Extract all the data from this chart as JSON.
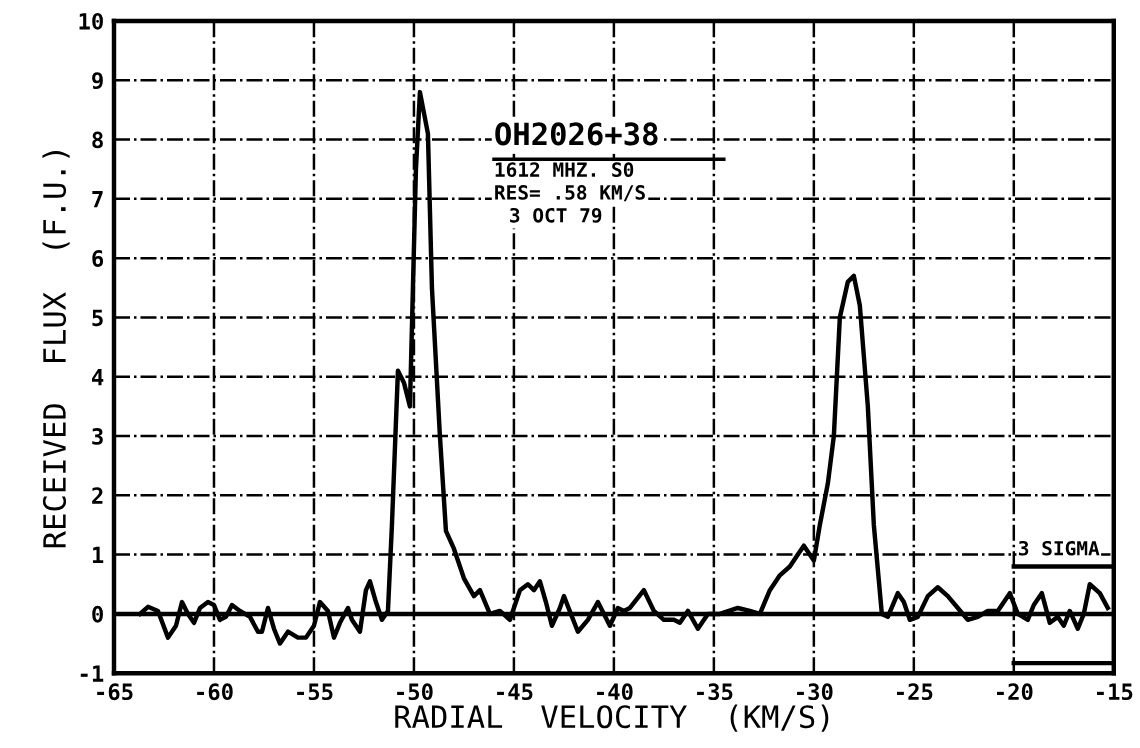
{
  "chart_data": {
    "type": "line",
    "xlabel": "RADIAL  VELOCITY  (KM/S)",
    "ylabel": "RECEIVED  FLUX  (F.U.)",
    "annotations": [
      "OH2026+38",
      "1612 MHZ. S0",
      "RES= .58 KM/S",
      "3 OCT 79",
      {
        "text": "3 SIGMA",
        "x": -20,
        "y": 0.8
      }
    ],
    "xlim": [
      -65,
      -15
    ],
    "xticks": [
      -65,
      -60,
      -55,
      -50,
      -45,
      -40,
      -35,
      -30,
      -25,
      -20,
      -15
    ],
    "ylim": [
      -1,
      10
    ],
    "yticks": [
      -1,
      0,
      1,
      2,
      3,
      4,
      5,
      6,
      7,
      8,
      9,
      10
    ],
    "grid": true,
    "legend": false,
    "marker": "none",
    "line_style": "solid",
    "ref_lines": [
      {
        "axis": "y",
        "value": 0,
        "label": null,
        "color": "#000000",
        "line_style": "solid"
      }
    ],
    "series": [
      {
        "color": "#000000",
        "x": [
          -63.7,
          -63.3,
          -62.8,
          -62.3,
          -61.9,
          -61.6,
          -61.3,
          -61,
          -60.7,
          -60.3,
          -60,
          -59.7,
          -59.4,
          -59.1,
          -58.7,
          -58.2,
          -57.8,
          -57.6,
          -57.3,
          -57,
          -56.7,
          -56.3,
          -55.8,
          -55.4,
          -55,
          -54.7,
          -54.3,
          -54,
          -53.7,
          -53.3,
          -53.1,
          -52.7,
          -52.4,
          -52.2,
          -51.9,
          -51.6,
          -51.3,
          -51.1,
          -50.8,
          -50.5,
          -50.2,
          -49.9,
          -49.7,
          -49.3,
          -49.1,
          -48.7,
          -48.4,
          -48,
          -47.5,
          -47,
          -46.7,
          -46.2,
          -45.7,
          -45.2,
          -44.7,
          -44.3,
          -44,
          -43.7,
          -43.4,
          -43.1,
          -42.7,
          -42.5,
          -41.8,
          -41.3,
          -40.8,
          -40.2,
          -39.8,
          -39.5,
          -39.2,
          -38.5,
          -38,
          -37.5,
          -37,
          -36.7,
          -36.3,
          -35.8,
          -35.3,
          -34.7,
          -33.8,
          -33.2,
          -32.7,
          -32.2,
          -31.7,
          -31.2,
          -30.8,
          -30.5,
          -30,
          -29.7,
          -29.3,
          -29,
          -28.7,
          -28.3,
          -28,
          -27.7,
          -27.3,
          -27,
          -26.6,
          -26.3,
          -25.8,
          -25.5,
          -25.2,
          -24.8,
          -24.3,
          -23.8,
          -23.3,
          -22.8,
          -22.3,
          -21.8,
          -21.3,
          -20.8,
          -20.2,
          -19.8,
          -19.3,
          -19,
          -18.6,
          -18.2,
          -17.8,
          -17.5,
          -17.2,
          -16.8,
          -16.5,
          -16.2,
          -15.7,
          -15.3
        ],
        "values": [
          0,
          0.12,
          0.05,
          -0.4,
          -0.2,
          0.2,
          0,
          -0.15,
          0.1,
          0.2,
          0.15,
          -0.1,
          -0.05,
          0.15,
          0.05,
          -0.05,
          -0.3,
          -0.3,
          0.1,
          -0.25,
          -0.5,
          -0.3,
          -0.4,
          -0.4,
          -0.2,
          0.2,
          0.05,
          -0.4,
          -0.15,
          0.1,
          -0.1,
          -0.3,
          0.4,
          0.55,
          0.2,
          -0.1,
          0.05,
          1.5,
          4.1,
          3.9,
          3.5,
          7.5,
          8.8,
          8.1,
          5.5,
          3,
          1.4,
          1.1,
          0.6,
          0.3,
          0.4,
          0,
          0.05,
          -0.1,
          0.4,
          0.5,
          0.4,
          0.55,
          0.2,
          -0.2,
          0.1,
          0.3,
          -0.3,
          -0.1,
          0.2,
          -0.2,
          0.1,
          0.05,
          0.1,
          0.4,
          0.05,
          -0.1,
          -0.1,
          -0.15,
          0.05,
          -0.25,
          0,
          0,
          0.1,
          0.05,
          0,
          0.4,
          0.65,
          0.8,
          1,
          1.15,
          0.9,
          1.5,
          2.2,
          3,
          5,
          5.6,
          5.7,
          5.2,
          3.5,
          1.5,
          0,
          -0.05,
          0.35,
          0.2,
          -0.1,
          -0.05,
          0.3,
          0.45,
          0.3,
          0.1,
          -0.1,
          -0.05,
          0.05,
          0.05,
          0.35,
          0,
          -0.1,
          0.15,
          0.35,
          -0.15,
          -0.05,
          -0.2,
          0.05,
          -0.25,
          0,
          0.5,
          0.35,
          0.1
        ]
      },
      {
        "color": "#000000",
        "x": [
          -20,
          -15
        ],
        "values": [
          0.8,
          0.8
        ]
      },
      {
        "color": "#000000",
        "x": [
          -20,
          -15
        ],
        "values": [
          -0.83,
          -0.83
        ]
      }
    ]
  }
}
